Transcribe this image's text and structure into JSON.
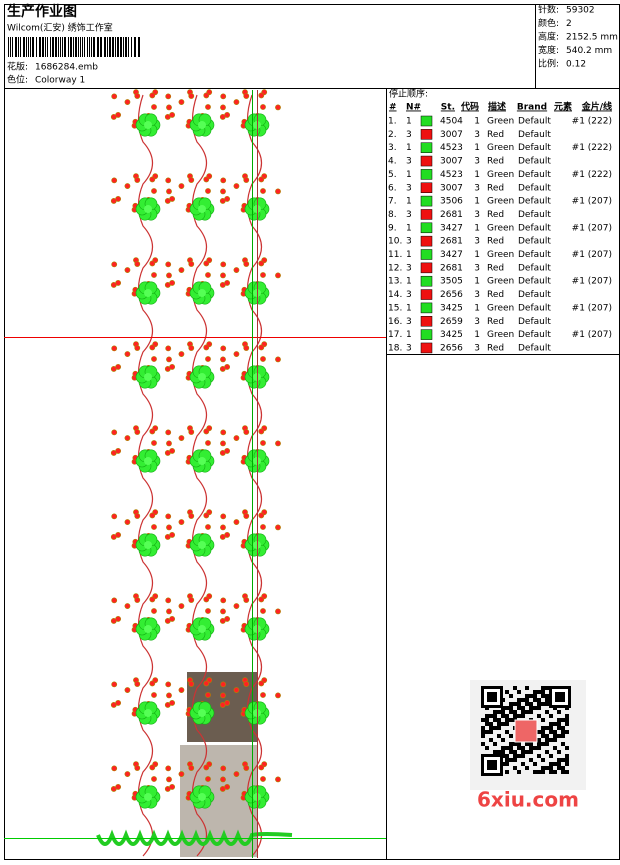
{
  "header": {
    "title": "生产作业图",
    "studio": "Wilcom(汇安) 绣饰工作室",
    "design_label": "花版:",
    "design": "1686284.emb",
    "colorway_label": "色位:",
    "colorway": "Colorway 1"
  },
  "stats": [
    {
      "label": "针数:",
      "value": "59302"
    },
    {
      "label": "颜色:",
      "value": "2"
    },
    {
      "label": "高度:",
      "value": "2152.5 mm"
    },
    {
      "label": "宽度:",
      "value": "540.2 mm"
    },
    {
      "label": "比例:",
      "value": "0.12"
    }
  ],
  "table": {
    "title": "停止顺序:",
    "columns": [
      "#",
      "N#",
      "St.",
      "代码",
      "描述",
      "Brand",
      "元素",
      "金片/线"
    ],
    "rows": [
      {
        "no": "1.",
        "n": "1",
        "swatch": "#22dd22",
        "st": "4504",
        "code": "1",
        "desc": "Green",
        "brand": "Default",
        "seq": "#1 (222)"
      },
      {
        "no": "2.",
        "n": "3",
        "swatch": "#ee1111",
        "st": "3007",
        "code": "3",
        "desc": "Red",
        "brand": "Default",
        "seq": null
      },
      {
        "no": "3.",
        "n": "1",
        "swatch": "#22dd22",
        "st": "4523",
        "code": "1",
        "desc": "Green",
        "brand": "Default",
        "seq": "#1 (222)"
      },
      {
        "no": "4.",
        "n": "3",
        "swatch": "#ee1111",
        "st": "3007",
        "code": "3",
        "desc": "Red",
        "brand": "Default",
        "seq": null
      },
      {
        "no": "5.",
        "n": "1",
        "swatch": "#22dd22",
        "st": "4523",
        "code": "1",
        "desc": "Green",
        "brand": "Default",
        "seq": "#1 (222)"
      },
      {
        "no": "6.",
        "n": "3",
        "swatch": "#ee1111",
        "st": "3007",
        "code": "3",
        "desc": "Red",
        "brand": "Default",
        "seq": null
      },
      {
        "no": "7.",
        "n": "1",
        "swatch": "#22dd22",
        "st": "3506",
        "code": "1",
        "desc": "Green",
        "brand": "Default",
        "seq": "#1 (207)"
      },
      {
        "no": "8.",
        "n": "3",
        "swatch": "#ee1111",
        "st": "2681",
        "code": "3",
        "desc": "Red",
        "brand": "Default",
        "seq": null
      },
      {
        "no": "9.",
        "n": "1",
        "swatch": "#22dd22",
        "st": "3427",
        "code": "1",
        "desc": "Green",
        "brand": "Default",
        "seq": "#1 (207)"
      },
      {
        "no": "10.",
        "n": "3",
        "swatch": "#ee1111",
        "st": "2681",
        "code": "3",
        "desc": "Red",
        "brand": "Default",
        "seq": null
      },
      {
        "no": "11.",
        "n": "1",
        "swatch": "#22dd22",
        "st": "3427",
        "code": "1",
        "desc": "Green",
        "brand": "Default",
        "seq": "#1 (207)"
      },
      {
        "no": "12.",
        "n": "3",
        "swatch": "#ee1111",
        "st": "2681",
        "code": "3",
        "desc": "Red",
        "brand": "Default",
        "seq": null
      },
      {
        "no": "13.",
        "n": "1",
        "swatch": "#22dd22",
        "st": "3505",
        "code": "1",
        "desc": "Green",
        "brand": "Default",
        "seq": "#1 (207)"
      },
      {
        "no": "14.",
        "n": "3",
        "swatch": "#ee1111",
        "st": "2656",
        "code": "3",
        "desc": "Red",
        "brand": "Default",
        "seq": null
      },
      {
        "no": "15.",
        "n": "1",
        "swatch": "#22dd22",
        "st": "3425",
        "code": "1",
        "desc": "Green",
        "brand": "Default",
        "seq": "#1 (207)"
      },
      {
        "no": "16.",
        "n": "3",
        "swatch": "#ee1111",
        "st": "2659",
        "code": "3",
        "desc": "Red",
        "brand": "Default",
        "seq": null
      },
      {
        "no": "17.",
        "n": "1",
        "swatch": "#22dd22",
        "st": "3425",
        "code": "1",
        "desc": "Green",
        "brand": "Default",
        "seq": "#1 (207)"
      },
      {
        "no": "18.",
        "n": "3",
        "swatch": "#ee1111",
        "st": "2656",
        "code": "3",
        "desc": "Red",
        "brand": "Default",
        "seq": null
      }
    ]
  },
  "watermark": "6xiu.com"
}
